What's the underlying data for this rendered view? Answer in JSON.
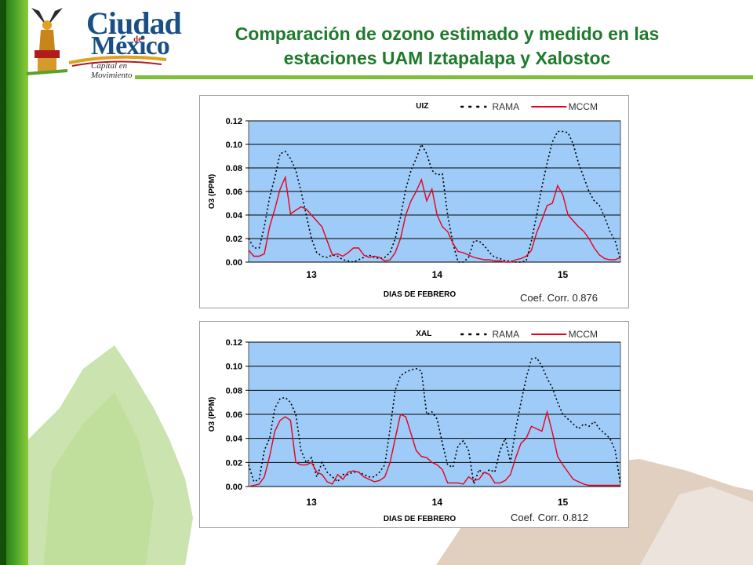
{
  "header": {
    "title_line1": "Comparación de ozono estimado y medido en las",
    "title_line2": "estaciones UAM Iztapalapa y Xalostoc",
    "logo": {
      "word1": "Ciudad",
      "word2": "de",
      "word3": "México",
      "tagline": "Capital en Movimiento"
    }
  },
  "colors": {
    "plot_bg": "#9ecbf7",
    "mccm": "#e8001c",
    "rama": "#000000",
    "grid": "#000000",
    "title_green": "#1e7a2c"
  },
  "chart_data": [
    {
      "type": "line",
      "station": "UIZ",
      "xlabel": "DIAS DE FEBRERO",
      "ylabel": "O3 (PPM)",
      "ylim": [
        0,
        0.12
      ],
      "yticks": [
        "0.00",
        "0.02",
        "0.04",
        "0.06",
        "0.08",
        "0.10",
        "0.12"
      ],
      "xticks": [
        {
          "label": "13",
          "x": 12
        },
        {
          "label": "14",
          "x": 36
        },
        {
          "label": "15",
          "x": 60
        }
      ],
      "xlim": [
        0,
        71
      ],
      "legend_placement": "top-right",
      "correlation": "Coef. Corr. 0.876",
      "series": [
        {
          "name": "RAMA",
          "style": "dotted",
          "values": [
            0.02,
            0.012,
            0.012,
            0.03,
            0.055,
            0.072,
            0.092,
            0.094,
            0.088,
            0.078,
            0.06,
            0.04,
            0.02,
            0.008,
            0.005,
            0.004,
            0.006,
            0.005,
            0.002,
            0.001,
            0.0,
            0.002,
            0.004,
            0.006,
            0.004,
            0.003,
            0.004,
            0.008,
            0.02,
            0.038,
            0.062,
            0.078,
            0.088,
            0.1,
            0.092,
            0.078,
            0.074,
            0.075,
            0.04,
            0.016,
            0.0,
            0.0,
            0.004,
            0.018,
            0.018,
            0.014,
            0.008,
            0.004,
            0.003,
            0.001,
            0.001,
            0.0,
            0.0,
            0.001,
            0.018,
            0.04,
            0.064,
            0.084,
            0.102,
            0.111,
            0.111,
            0.11,
            0.1,
            0.084,
            0.072,
            0.06,
            0.052,
            0.048,
            0.038,
            0.026,
            0.018,
            0.002
          ]
        },
        {
          "name": "MCCM",
          "style": "solid",
          "values": [
            0.01,
            0.005,
            0.005,
            0.007,
            0.03,
            0.045,
            0.062,
            0.072,
            0.041,
            0.044,
            0.047,
            0.045,
            0.04,
            0.035,
            0.03,
            0.018,
            0.006,
            0.007,
            0.005,
            0.008,
            0.012,
            0.012,
            0.006,
            0.004,
            0.005,
            0.004,
            0.001,
            0.002,
            0.008,
            0.02,
            0.04,
            0.052,
            0.06,
            0.07,
            0.052,
            0.062,
            0.04,
            0.03,
            0.026,
            0.016,
            0.009,
            0.008,
            0.006,
            0.004,
            0.003,
            0.002,
            0.002,
            0.001,
            0.001,
            0.0,
            0.0,
            0.002,
            0.003,
            0.005,
            0.01,
            0.025,
            0.036,
            0.048,
            0.05,
            0.065,
            0.057,
            0.04,
            0.035,
            0.03,
            0.026,
            0.02,
            0.012,
            0.006,
            0.003,
            0.002,
            0.002,
            0.004
          ]
        }
      ]
    },
    {
      "type": "line",
      "station": "XAL",
      "xlabel": "DIAS DE FEBRERO",
      "ylabel": "O3 (PPM)",
      "ylim": [
        0,
        0.12
      ],
      "yticks": [
        "0.00",
        "0.02",
        "0.04",
        "0.06",
        "0.08",
        "0.10",
        "0.12"
      ],
      "xticks": [
        {
          "label": "13",
          "x": 12
        },
        {
          "label": "14",
          "x": 36
        },
        {
          "label": "15",
          "x": 60
        }
      ],
      "xlim": [
        0,
        71
      ],
      "legend_placement": "top-right",
      "correlation": "Coef. Corr. 0.812",
      "series": [
        {
          "name": "RAMA",
          "style": "dotted",
          "values": [
            0.018,
            0.004,
            0.006,
            0.03,
            0.04,
            0.065,
            0.073,
            0.074,
            0.07,
            0.06,
            0.03,
            0.02,
            0.024,
            0.008,
            0.02,
            0.012,
            0.008,
            0.004,
            0.01,
            0.01,
            0.012,
            0.012,
            0.01,
            0.008,
            0.008,
            0.012,
            0.018,
            0.048,
            0.08,
            0.092,
            0.095,
            0.097,
            0.098,
            0.096,
            0.06,
            0.062,
            0.056,
            0.036,
            0.018,
            0.016,
            0.034,
            0.038,
            0.03,
            0.002,
            0.014,
            0.01,
            0.014,
            0.012,
            0.03,
            0.04,
            0.02,
            0.048,
            0.07,
            0.09,
            0.106,
            0.107,
            0.1,
            0.09,
            0.082,
            0.07,
            0.06,
            0.056,
            0.052,
            0.048,
            0.052,
            0.05,
            0.054,
            0.048,
            0.044,
            0.04,
            0.03,
            0.002
          ]
        },
        {
          "name": "MCCM",
          "style": "solid",
          "values": [
            0.0,
            0.001,
            0.002,
            0.008,
            0.025,
            0.046,
            0.055,
            0.058,
            0.055,
            0.02,
            0.018,
            0.018,
            0.02,
            0.012,
            0.01,
            0.004,
            0.002,
            0.01,
            0.006,
            0.012,
            0.013,
            0.012,
            0.008,
            0.006,
            0.004,
            0.005,
            0.008,
            0.02,
            0.04,
            0.06,
            0.058,
            0.044,
            0.03,
            0.025,
            0.024,
            0.02,
            0.018,
            0.014,
            0.003,
            0.003,
            0.003,
            0.002,
            0.008,
            0.005,
            0.006,
            0.012,
            0.01,
            0.003,
            0.003,
            0.005,
            0.01,
            0.024,
            0.036,
            0.04,
            0.05,
            0.048,
            0.046,
            0.062,
            0.045,
            0.025,
            0.018,
            0.012,
            0.006,
            0.004,
            0.002,
            0.001,
            0.001,
            0.001,
            0.001,
            0.001,
            0.001,
            0.001
          ]
        }
      ]
    }
  ]
}
